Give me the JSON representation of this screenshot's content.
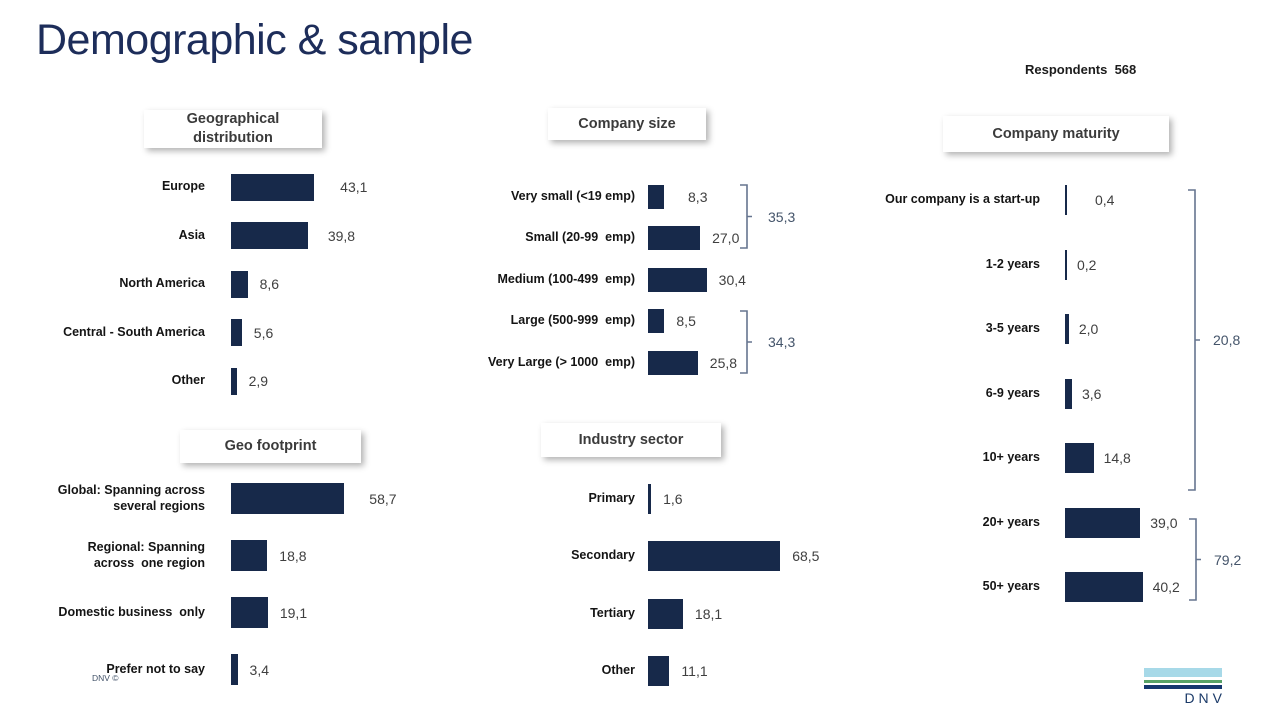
{
  "title": "Demographic & sample",
  "respondents": {
    "label": "Respondents",
    "value": "568"
  },
  "footer": {
    "copyright": "DNV ©",
    "logo_text": "DNV"
  },
  "colors": {
    "bar": "#17294a",
    "title_text": "#1d2d5a",
    "bracket_line": "#66758f",
    "bracket_value_text": "#44546a",
    "logo_light_blue": "#a7d9e8",
    "logo_green": "#57a266",
    "logo_navy": "#14366e"
  },
  "chart_data": [
    {
      "id": "geo_distribution",
      "type": "bar",
      "orientation": "horizontal",
      "title": "Geographical\ndistribution",
      "categories": [
        "Europe",
        "Asia",
        "North America",
        "Central - South America",
        "Other"
      ],
      "values": [
        43.1,
        39.8,
        8.6,
        5.6,
        2.9
      ],
      "value_labels": [
        "43,1",
        "39,8",
        "8,6",
        "5,6",
        "2,9"
      ],
      "xlim": [
        0,
        100
      ],
      "grid": false,
      "legend": false
    },
    {
      "id": "company_size",
      "type": "bar",
      "orientation": "horizontal",
      "title": "Company size",
      "categories": [
        "Very small (<19 emp)",
        "Small (20-99  emp)",
        "Medium (100-499  emp)",
        "Large (500-999  emp)",
        "Very Large (> 1000  emp)"
      ],
      "values": [
        8.3,
        27.0,
        30.4,
        8.5,
        25.8
      ],
      "value_labels": [
        "8,3",
        "27,0",
        "30,4",
        "8,5",
        "25,8"
      ],
      "xlim": [
        0,
        100
      ],
      "grid": false,
      "legend": false,
      "brackets": [
        {
          "value": 35.3,
          "label": "35,3",
          "span_rows": [
            0,
            1
          ]
        },
        {
          "value": 34.3,
          "label": "34,3",
          "span_rows": [
            3,
            4
          ]
        }
      ]
    },
    {
      "id": "company_maturity",
      "type": "bar",
      "orientation": "horizontal",
      "title": "Company maturity",
      "categories": [
        "Our company is a start-up",
        "1-2 years",
        "3-5 years",
        "6-9 years",
        "10+ years",
        "20+ years",
        "50+ years"
      ],
      "values": [
        0.4,
        0.2,
        2.0,
        3.6,
        14.8,
        39.0,
        40.2
      ],
      "value_labels": [
        "0,4",
        "0,2",
        "2,0",
        "3,6",
        "14,8",
        "39,0",
        "40,2"
      ],
      "xlim": [
        0,
        100
      ],
      "grid": false,
      "legend": false,
      "brackets": [
        {
          "value": 20.8,
          "label": "20,8",
          "span_rows": [
            0,
            4
          ]
        },
        {
          "value": 79.2,
          "label": "79,2",
          "span_rows": [
            5,
            6
          ]
        }
      ]
    },
    {
      "id": "geo_footprint",
      "type": "bar",
      "orientation": "horizontal",
      "title": "Geo footprint",
      "categories": [
        "Global: Spanning across\nseveral regions",
        "Regional: Spanning\nacross  one region",
        "Domestic business  only",
        "Prefer not to say"
      ],
      "values": [
        58.7,
        18.8,
        19.1,
        3.4
      ],
      "value_labels": [
        "58,7",
        "18,8",
        "19,1",
        "3,4"
      ],
      "xlim": [
        0,
        100
      ],
      "grid": false,
      "legend": false
    },
    {
      "id": "industry_sector",
      "type": "bar",
      "orientation": "horizontal",
      "title": "Industry sector",
      "categories": [
        "Primary",
        "Secondary",
        "Tertiary",
        "Other"
      ],
      "values": [
        1.6,
        68.5,
        18.1,
        11.1
      ],
      "value_labels": [
        "1,6",
        "68,5",
        "18,1",
        "11,1"
      ],
      "xlim": [
        0,
        100
      ],
      "grid": false,
      "legend": false
    }
  ]
}
